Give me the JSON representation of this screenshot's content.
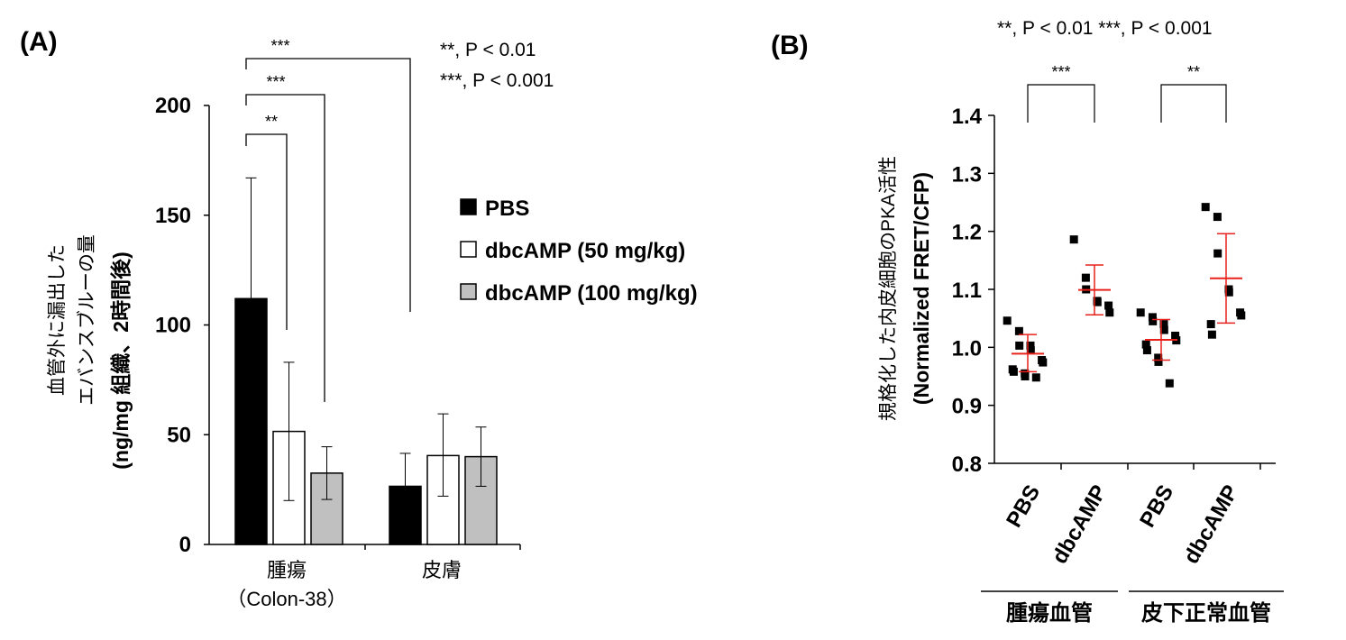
{
  "chart_data": [
    {
      "panel_label": "(A)",
      "type": "bar",
      "ylabel_lines": [
        "血管外に漏出した",
        "エバンスブルーの量",
        "(ng/mg 組織、2時間後)"
      ],
      "ylim": [
        0,
        200
      ],
      "yticks": [
        "0",
        "50",
        "100",
        "150",
        "200"
      ],
      "categories": [
        "腫瘍",
        "皮膚"
      ],
      "category_sublabels": [
        "（Colon-38）",
        ""
      ],
      "series": [
        {
          "name": "PBS",
          "color": "#000000",
          "values": [
            112,
            26.5
          ],
          "err_upper": [
            167,
            41.5
          ]
        },
        {
          "name": "dbcAMP (50 mg/kg)",
          "color": "#ffffff",
          "values": [
            51.5,
            40.5
          ],
          "err_upper": [
            83,
            59.5
          ],
          "err_lower": [
            20,
            22
          ]
        },
        {
          "name": "dbcAMP (100 mg/kg)",
          "color": "#c0c0c0",
          "values": [
            32.5,
            40
          ],
          "err_upper": [
            44.5,
            53.5
          ],
          "err_lower": [
            20.5,
            26.5
          ]
        }
      ],
      "significance": [
        {
          "label": "**",
          "from": "腫瘍 PBS",
          "to": "腫瘍 dbcAMP (50 mg/kg)"
        },
        {
          "label": "***",
          "from": "腫瘍 PBS",
          "to": "腫瘍 dbcAMP (100 mg/kg)"
        },
        {
          "label": "***",
          "from": "腫瘍 PBS",
          "to": "皮膚"
        }
      ],
      "p_notes": [
        "**, P < 0.01",
        "***, P < 0.001"
      ],
      "legend_position": "right"
    },
    {
      "panel_label": "(B)",
      "type": "scatter",
      "ylabel_lines": [
        "規格化した内皮細胞のPKA活性",
        "(Normalized FRET/CFP)"
      ],
      "ylim": [
        0.8,
        1.4
      ],
      "yticks": [
        "0.8",
        "0.9",
        "1.0",
        "1.1",
        "1.2",
        "1.3",
        "1.4"
      ],
      "categories": [
        "PBS",
        "dbcAMP",
        "PBS",
        "dbcAMP"
      ],
      "group_labels": [
        "腫瘍血管",
        "皮下正常血管"
      ],
      "mean_sd_color": "#e8211b",
      "groups": [
        {
          "points": [
            1.046,
            1.028,
            1.003,
            1.003,
            0.995,
            0.978,
            0.974,
            0.962,
            0.958,
            0.955,
            0.95,
            0.948
          ],
          "mean": 0.989,
          "sd_upper": 1.022,
          "sd_lower": 0.958
        },
        {
          "points": [
            1.186,
            1.12,
            1.1,
            1.08,
            1.078,
            1.072,
            1.06
          ],
          "mean": 1.099,
          "sd_upper": 1.142,
          "sd_lower": 1.056
        },
        {
          "points": [
            1.06,
            1.052,
            1.045,
            1.04,
            1.03,
            1.02,
            1.012,
            1.005,
            0.995,
            0.982,
            0.975,
            0.938
          ],
          "mean": 1.013,
          "sd_upper": 1.048,
          "sd_lower": 0.978
        },
        {
          "points": [
            1.242,
            1.225,
            1.162,
            1.1,
            1.095,
            1.06,
            1.055,
            1.04,
            1.022
          ],
          "mean": 1.119,
          "sd_upper": 1.196,
          "sd_lower": 1.042
        }
      ],
      "significance": [
        {
          "label": "***",
          "from": 0,
          "to": 1
        },
        {
          "label": "**",
          "from": 2,
          "to": 3
        }
      ],
      "p_note": "**, P < 0.01 ***, P < 0.001"
    }
  ]
}
